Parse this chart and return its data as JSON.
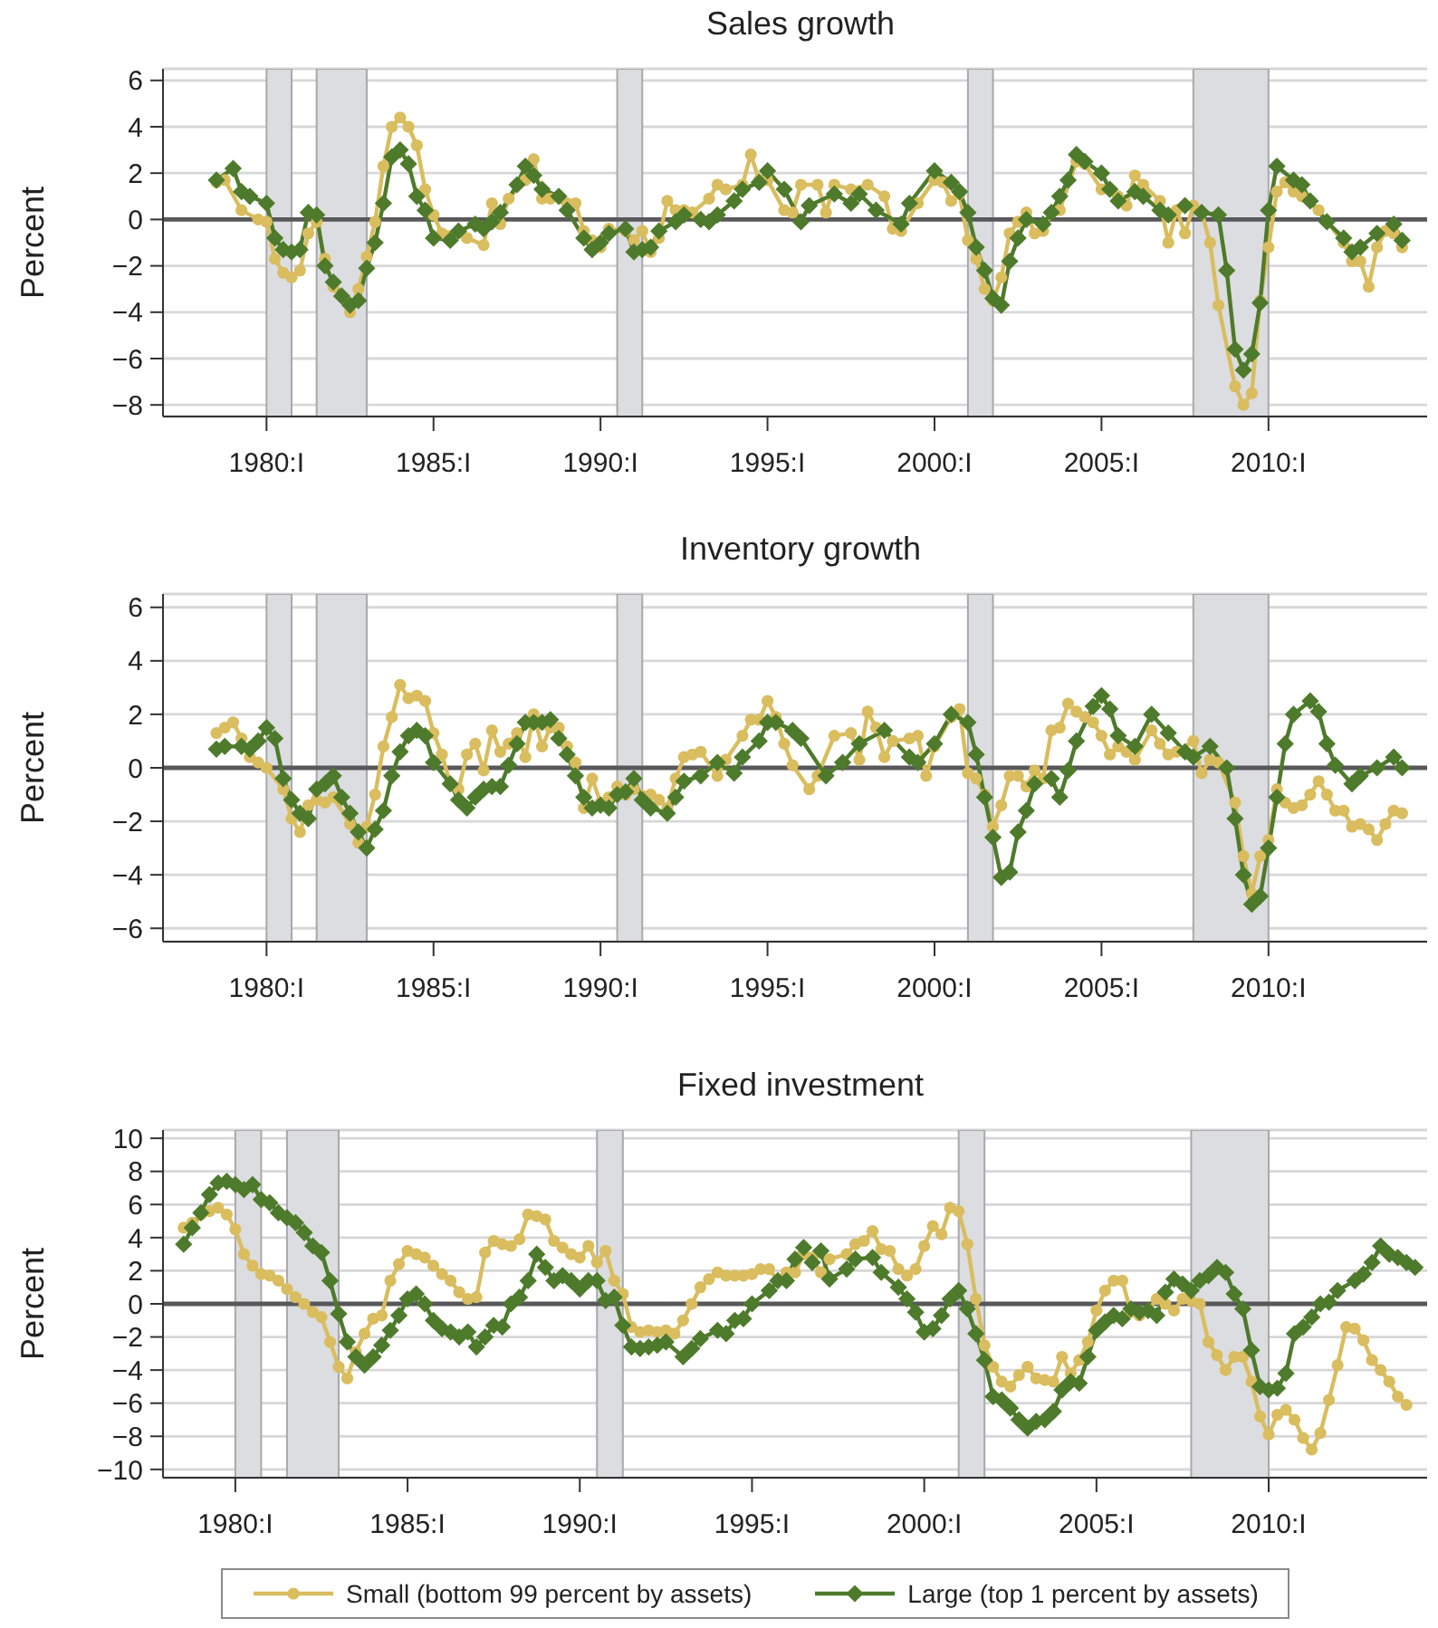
{
  "chart_data": [
    {
      "type": "line",
      "title": "Sales growth",
      "ylabel": "Percent",
      "xlim": [
        1976.9,
        2014.75
      ],
      "ylim": [
        -8.5,
        6.5
      ],
      "xticks": [
        {
          "value": 1980,
          "label": "1980:I"
        },
        {
          "value": 1985,
          "label": "1985:I"
        },
        {
          "value": 1990,
          "label": "1990:I"
        },
        {
          "value": 1995,
          "label": "1995:I"
        },
        {
          "value": 2000,
          "label": "2000:I"
        },
        {
          "value": 2005,
          "label": "2005:I"
        },
        {
          "value": 2010,
          "label": "2010:I"
        }
      ],
      "yticks": [
        {
          "value": -8,
          "label": "−8"
        },
        {
          "value": -6,
          "label": "−6"
        },
        {
          "value": -4,
          "label": "−4"
        },
        {
          "value": -2,
          "label": "−2"
        },
        0,
        2,
        4,
        6
      ],
      "grid": "y",
      "bands": [
        {
          "axis": "x",
          "from": 1980,
          "to": 1980.75,
          "color": "#dcdde0"
        },
        {
          "axis": "x",
          "from": 1981.5,
          "to": 1983,
          "color": "#dcdde0"
        },
        {
          "axis": "x",
          "from": 1990.5,
          "to": 1991.25,
          "color": "#dcdde0"
        },
        {
          "axis": "x",
          "from": 2001,
          "to": 2001.75,
          "color": "#dcdde0"
        },
        {
          "axis": "x",
          "from": 2007.75,
          "to": 2010,
          "color": "#dcdde0"
        }
      ],
      "ref_lines": [
        {
          "axis": "y",
          "value": 0,
          "color": "#58585a"
        }
      ],
      "series": [
        {
          "color": "#d9bd5e",
          "marker": "circle",
          "x": [
            1978.5,
            1978.75,
            1979.25,
            1979.75,
            1980,
            1980.25,
            1980.5,
            1980.75,
            1981,
            1981.25,
            1981.5,
            1981.75,
            1982,
            1982.5,
            1982.75,
            1983,
            1983.25,
            1983.5,
            1983.75,
            1984,
            1984.25,
            1984.5,
            1984.75,
            1985,
            1985.25,
            1985.75,
            1986,
            1986.5,
            1986.75,
            1987,
            1987.25,
            1987.75,
            1988,
            1988.25,
            1988.5,
            1989,
            1989.25,
            1989.5,
            1989.75,
            1990,
            1990.25,
            1990.75,
            1991,
            1991.25,
            1991.5,
            1991.75,
            1992,
            1992.25,
            1992.5,
            1992.75,
            1993.25,
            1993.5,
            1993.75,
            1994.25,
            1994.5,
            1994.75,
            1995,
            1995.5,
            1995.75,
            1996,
            1996.5,
            1996.75,
            1997,
            1997.5,
            1998,
            1998.5,
            1998.75,
            1999,
            1999.5,
            2000,
            2000.25,
            2000.5,
            2000.75,
            2001,
            2001.25,
            2001.5,
            2001.75,
            2002,
            2002.25,
            2002.5,
            2002.75,
            2003,
            2003.25,
            2003.5,
            2003.75,
            2004.25,
            2004.5,
            2005,
            2005.5,
            2005.75,
            2006,
            2006.25,
            2006.75,
            2007,
            2007.25,
            2007.5,
            2007.75,
            2008,
            2008.25,
            2008.5,
            2009,
            2009.25,
            2009.5,
            2009.75,
            2010,
            2010.25,
            2010.5,
            2010.75,
            2011,
            2011.5,
            2011.75,
            2012.25,
            2012.5,
            2012.75,
            2013,
            2013.25,
            2013.5,
            2013.75,
            2014
          ],
          "values": [
            1.6,
            1.7,
            0.4,
            0.0,
            -0.1,
            -1.7,
            -2.3,
            -2.5,
            -2.2,
            -0.6,
            -0.1,
            -1.7,
            -2.9,
            -4.0,
            -3.0,
            -1.6,
            -0.1,
            2.3,
            4.0,
            4.4,
            4.0,
            3.2,
            1.3,
            0.2,
            -0.6,
            -0.5,
            -0.8,
            -1.1,
            0.7,
            -0.2,
            0.9,
            1.7,
            2.6,
            0.9,
            0.9,
            0.7,
            0.7,
            -0.5,
            -0.9,
            -1.2,
            -0.4,
            -0.5,
            -0.9,
            -0.5,
            -1.4,
            -0.8,
            0.8,
            0.4,
            0.4,
            0.3,
            0.9,
            1.5,
            1.3,
            1.5,
            2.8,
            1.7,
            1.7,
            0.4,
            0.3,
            1.5,
            1.5,
            0.3,
            1.5,
            1.3,
            1.5,
            1.0,
            -0.4,
            -0.5,
            0.7,
            1.7,
            1.6,
            0.8,
            1.1,
            -0.9,
            -1.7,
            -3.0,
            -3.5,
            -2.5,
            -0.6,
            -0.1,
            0.3,
            -0.6,
            -0.5,
            0.3,
            0.4,
            2.5,
            2.4,
            1.3,
            1.0,
            0.6,
            1.9,
            1.5,
            0.8,
            -1.0,
            0.4,
            -0.6,
            0.6,
            0.3,
            -1.0,
            -3.7,
            -7.2,
            -8.0,
            -7.5,
            -3.5,
            -1.2,
            1.2,
            1.6,
            1.2,
            1.0,
            0.4,
            -0.1,
            -1.0,
            -1.8,
            -1.8,
            -2.9,
            -1.2,
            -0.5,
            -0.6,
            -1.2
          ]
        },
        {
          "color": "#4e7a2b",
          "marker": "diamond",
          "x": [
            1978.5,
            1979,
            1979.25,
            1979.5,
            1980,
            1980.25,
            1980.5,
            1980.75,
            1981,
            1981.25,
            1981.5,
            1981.75,
            1982,
            1982.25,
            1982.5,
            1982.75,
            1983,
            1983.25,
            1983.5,
            1983.75,
            1984,
            1984.25,
            1984.5,
            1984.75,
            1985,
            1985.5,
            1985.75,
            1986.25,
            1986.5,
            1986.75,
            1987,
            1987.5,
            1987.75,
            1988,
            1988.25,
            1988.75,
            1989,
            1989.5,
            1989.75,
            1990,
            1990.25,
            1990.75,
            1991,
            1991.25,
            1991.5,
            1991.75,
            1992.25,
            1992.5,
            1993,
            1993.25,
            1993.5,
            1994,
            1994.25,
            1994.75,
            1995,
            1995.5,
            1996,
            1996.25,
            1997,
            1997.5,
            1997.75,
            1998.25,
            1999,
            1999.25,
            2000,
            2000.5,
            2000.75,
            2001,
            2001.25,
            2001.5,
            2001.75,
            2002,
            2002.25,
            2002.5,
            2002.75,
            2003.25,
            2003.5,
            2003.75,
            2004,
            2004.25,
            2004.5,
            2005,
            2005.25,
            2005.5,
            2006,
            2006.25,
            2006.75,
            2007,
            2007.5,
            2008,
            2008.5,
            2008.75,
            2009,
            2009.25,
            2009.5,
            2009.75,
            2010,
            2010.25,
            2010.75,
            2011,
            2011.25,
            2011.75,
            2012.25,
            2012.5,
            2012.75,
            2013.25,
            2013.75,
            2014
          ],
          "values": [
            1.7,
            2.2,
            1.2,
            1.0,
            0.7,
            -0.8,
            -1.3,
            -1.4,
            -1.3,
            0.3,
            0.2,
            -2.0,
            -2.7,
            -3.3,
            -3.7,
            -3.5,
            -2.1,
            -1.0,
            0.7,
            2.7,
            3.0,
            2.4,
            1.0,
            0.4,
            -0.8,
            -0.9,
            -0.5,
            -0.2,
            -0.4,
            -0.1,
            0.3,
            1.5,
            2.3,
            1.9,
            1.3,
            1.0,
            0.4,
            -0.8,
            -1.3,
            -1.0,
            -0.6,
            -0.4,
            -1.4,
            -1.3,
            -1.2,
            -0.5,
            -0.1,
            0.2,
            0.0,
            -0.1,
            0.2,
            0.8,
            1.3,
            1.6,
            2.1,
            1.3,
            -0.1,
            0.6,
            1.1,
            0.7,
            1.1,
            0.4,
            -0.2,
            0.7,
            2.1,
            1.6,
            1.2,
            0.3,
            -1.2,
            -2.2,
            -3.4,
            -3.7,
            -1.8,
            -0.8,
            0.0,
            -0.2,
            0.3,
            1.0,
            1.7,
            2.8,
            2.5,
            2.0,
            1.3,
            0.8,
            1.2,
            1.0,
            0.4,
            0.2,
            0.6,
            0.3,
            0.2,
            -2.2,
            -5.6,
            -6.5,
            -5.8,
            -3.6,
            0.4,
            2.3,
            1.7,
            1.5,
            0.8,
            -0.1,
            -0.8,
            -1.4,
            -1.2,
            -0.6,
            -0.2,
            -0.9
          ]
        }
      ]
    },
    {
      "type": "line",
      "title": "Inventory growth",
      "ylabel": "Percent",
      "xlim": [
        1976.9,
        2014.75
      ],
      "ylim": [
        -6.5,
        6.5
      ],
      "xticks": [
        {
          "value": 1980,
          "label": "1980:I"
        },
        {
          "value": 1985,
          "label": "1985:I"
        },
        {
          "value": 1990,
          "label": "1990:I"
        },
        {
          "value": 1995,
          "label": "1995:I"
        },
        {
          "value": 2000,
          "label": "2000:I"
        },
        {
          "value": 2005,
          "label": "2005:I"
        },
        {
          "value": 2010,
          "label": "2010:I"
        }
      ],
      "yticks": [
        {
          "value": -6,
          "label": "−6"
        },
        {
          "value": -4,
          "label": "−4"
        },
        {
          "value": -2,
          "label": "−2"
        },
        0,
        2,
        4,
        6
      ],
      "grid": "y",
      "bands": [
        {
          "axis": "x",
          "from": 1980,
          "to": 1980.75,
          "color": "#dcdde0"
        },
        {
          "axis": "x",
          "from": 1981.5,
          "to": 1983,
          "color": "#dcdde0"
        },
        {
          "axis": "x",
          "from": 1990.5,
          "to": 1991.25,
          "color": "#dcdde0"
        },
        {
          "axis": "x",
          "from": 2001,
          "to": 2001.75,
          "color": "#dcdde0"
        },
        {
          "axis": "x",
          "from": 2007.75,
          "to": 2010,
          "color": "#dcdde0"
        }
      ],
      "ref_lines": [
        {
          "axis": "y",
          "value": 0,
          "color": "#58585a"
        }
      ],
      "series": [
        {
          "color": "#d9bd5e",
          "marker": "circle",
          "x": [
            1978.5,
            1978.75,
            1979,
            1979.25,
            1979.5,
            1979.75,
            1980,
            1980.5,
            1980.75,
            1981,
            1981.25,
            1981.5,
            1981.75,
            1982,
            1982.5,
            1982.75,
            1983,
            1983.25,
            1983.5,
            1983.75,
            1984,
            1984.25,
            1984.5,
            1984.75,
            1985,
            1985.25,
            1985.5,
            1985.75,
            1986,
            1986.25,
            1986.5,
            1986.75,
            1987,
            1987.25,
            1987.5,
            1987.75,
            1988,
            1988.25,
            1988.5,
            1988.75,
            1989,
            1989.25,
            1989.5,
            1989.75,
            1990,
            1990.25,
            1990.5,
            1990.75,
            1991,
            1991.5,
            1991.75,
            1992,
            1992.25,
            1992.5,
            1992.75,
            1993,
            1993.5,
            1993.75,
            1994.25,
            1994.5,
            1994.75,
            1995,
            1995.25,
            1995.5,
            1995.75,
            1996.25,
            1996.5,
            1997,
            1997.5,
            1997.75,
            1998,
            1998.25,
            1998.5,
            1998.75,
            1999.25,
            1999.5,
            1999.75,
            2000,
            2000.5,
            2000.75,
            2001,
            2001.25,
            2001.5,
            2001.75,
            2002,
            2002.25,
            2002.5,
            2002.75,
            2003,
            2003.25,
            2003.5,
            2003.75,
            2004,
            2004.25,
            2004.5,
            2004.75,
            2005,
            2005.25,
            2005.5,
            2005.75,
            2006,
            2006.5,
            2006.75,
            2007,
            2007.25,
            2007.75,
            2008,
            2008.25,
            2008.5,
            2009,
            2009.25,
            2009.5,
            2009.75,
            2010,
            2010.25,
            2010.5,
            2010.75,
            2011,
            2011.25,
            2011.5,
            2011.75,
            2012,
            2012.25,
            2012.5,
            2012.75,
            2013,
            2013.25,
            2013.5,
            2013.75,
            2014
          ],
          "values": [
            1.3,
            1.5,
            1.7,
            1.1,
            0.4,
            0.2,
            0.0,
            -0.8,
            -1.9,
            -2.4,
            -1.4,
            -1.2,
            -1.3,
            -1.1,
            -2.1,
            -2.8,
            -2.2,
            -1.0,
            0.8,
            1.9,
            3.1,
            2.6,
            2.7,
            2.5,
            1.3,
            0.5,
            -0.6,
            -0.8,
            0.5,
            0.9,
            -0.1,
            1.4,
            0.6,
            0.9,
            1.3,
            0.4,
            2.0,
            0.8,
            1.5,
            1.5,
            0.8,
            0.2,
            -1.5,
            -0.4,
            -1.3,
            -1.1,
            -0.7,
            -1.0,
            -0.8,
            -1.0,
            -1.2,
            -1.5,
            -0.4,
            0.4,
            0.5,
            0.6,
            -0.3,
            0.3,
            1.2,
            1.8,
            1.8,
            2.5,
            1.9,
            0.9,
            0.1,
            -0.8,
            -0.3,
            1.2,
            1.3,
            0.3,
            2.1,
            1.5,
            0.4,
            1.0,
            1.1,
            1.2,
            -0.3,
            0.8,
            1.9,
            2.2,
            -0.2,
            -0.4,
            -1.0,
            -2.2,
            -1.4,
            -0.3,
            -0.3,
            -0.7,
            -0.1,
            -0.4,
            1.4,
            1.5,
            2.4,
            2.1,
            1.9,
            1.7,
            1.2,
            0.5,
            0.8,
            0.6,
            0.3,
            1.4,
            0.9,
            0.5,
            0.6,
            1.0,
            -0.2,
            0.3,
            0.2,
            -1.3,
            -3.3,
            -4.7,
            -3.3,
            -2.7,
            -0.8,
            -1.3,
            -1.5,
            -1.4,
            -1.0,
            -0.5,
            -1.0,
            -1.6,
            -1.6,
            -2.2,
            -2.1,
            -2.3,
            -2.7,
            -2.1,
            -1.6,
            -1.7
          ]
        },
        {
          "color": "#4e7a2b",
          "marker": "diamond",
          "x": [
            1978.5,
            1978.75,
            1979.25,
            1979.5,
            1979.75,
            1980,
            1980.25,
            1980.5,
            1980.75,
            1981,
            1981.25,
            1981.5,
            1981.75,
            1982,
            1982.25,
            1982.5,
            1982.75,
            1983,
            1983.25,
            1983.5,
            1983.75,
            1984,
            1984.25,
            1984.5,
            1984.75,
            1985,
            1985.5,
            1985.75,
            1986,
            1986.25,
            1986.5,
            1986.75,
            1987,
            1987.25,
            1987.5,
            1987.75,
            1988,
            1988.25,
            1988.5,
            1988.75,
            1989,
            1989.25,
            1989.5,
            1989.75,
            1990,
            1990.25,
            1990.5,
            1990.75,
            1991,
            1991.25,
            1991.5,
            1992,
            1992.25,
            1992.5,
            1993,
            1993.5,
            1994,
            1994.25,
            1994.75,
            1995,
            1995.25,
            1995.75,
            1996,
            1996.75,
            1997.25,
            1997.75,
            1998.5,
            1999.25,
            1999.5,
            2000,
            2000.5,
            2001,
            2001.25,
            2001.5,
            2001.75,
            2002,
            2002.25,
            2002.5,
            2002.75,
            2003,
            2003.5,
            2003.75,
            2004,
            2004.25,
            2004.75,
            2005,
            2005.25,
            2005.5,
            2006,
            2006.5,
            2007,
            2007.5,
            2007.75,
            2008.25,
            2008.75,
            2009,
            2009.25,
            2009.5,
            2009.75,
            2010,
            2010.25,
            2010.5,
            2010.75,
            2011.25,
            2011.5,
            2011.75,
            2012,
            2012.5,
            2012.75,
            2013.25,
            2013.75,
            2014
          ],
          "values": [
            0.7,
            0.8,
            0.8,
            0.7,
            1.0,
            1.5,
            1.1,
            -0.4,
            -1.2,
            -1.7,
            -1.9,
            -0.8,
            -0.6,
            -0.3,
            -1.1,
            -1.7,
            -2.4,
            -3.0,
            -2.3,
            -1.6,
            -0.3,
            0.6,
            1.2,
            1.4,
            1.2,
            0.2,
            -0.6,
            -1.2,
            -1.5,
            -1.1,
            -0.8,
            -0.7,
            -0.7,
            0.1,
            0.9,
            1.7,
            1.7,
            1.7,
            1.8,
            1.1,
            0.5,
            -0.3,
            -1.1,
            -1.5,
            -1.4,
            -1.5,
            -1.0,
            -0.9,
            -0.4,
            -1.2,
            -1.5,
            -1.7,
            -1.1,
            -0.5,
            -0.3,
            0.2,
            -0.2,
            0.4,
            1.0,
            1.7,
            1.7,
            1.4,
            1.1,
            -0.3,
            0.2,
            0.9,
            1.4,
            0.4,
            0.2,
            0.9,
            2.0,
            1.7,
            0.5,
            -1.1,
            -2.6,
            -4.1,
            -3.9,
            -2.4,
            -1.6,
            -0.6,
            -0.4,
            -1.1,
            -0.1,
            1.0,
            2.3,
            2.7,
            2.2,
            1.2,
            0.8,
            2.0,
            1.3,
            0.6,
            0.4,
            0.8,
            0.0,
            -1.9,
            -4.0,
            -5.1,
            -4.8,
            -3.0,
            -1.1,
            0.9,
            2.0,
            2.5,
            2.1,
            0.9,
            0.1,
            -0.6,
            -0.3,
            0.0,
            0.4,
            0.0
          ]
        }
      ]
    },
    {
      "type": "line",
      "title": "Fixed investment",
      "ylabel": "Percent",
      "xlim": [
        1977.9,
        2014.6
      ],
      "ylim": [
        -10.5,
        10.5
      ],
      "xticks": [
        {
          "value": 1980,
          "label": "1980:I"
        },
        {
          "value": 1985,
          "label": "1985:I"
        },
        {
          "value": 1990,
          "label": "1990:I"
        },
        {
          "value": 1995,
          "label": "1995:I"
        },
        {
          "value": 2000,
          "label": "2000:I"
        },
        {
          "value": 2005,
          "label": "2005:I"
        },
        {
          "value": 2010,
          "label": "2010:I"
        }
      ],
      "yticks": [
        {
          "value": -10,
          "label": "−10"
        },
        {
          "value": -8,
          "label": "−8"
        },
        {
          "value": -6,
          "label": "−6"
        },
        {
          "value": -4,
          "label": "−4"
        },
        {
          "value": -2,
          "label": "−2"
        },
        0,
        2,
        4,
        6,
        8,
        10
      ],
      "grid": "y",
      "legend": "bottom",
      "bands": [
        {
          "axis": "x",
          "from": 1980,
          "to": 1980.75,
          "color": "#dcdde0"
        },
        {
          "axis": "x",
          "from": 1981.5,
          "to": 1983,
          "color": "#dcdde0"
        },
        {
          "axis": "x",
          "from": 1990.5,
          "to": 1991.25,
          "color": "#dcdde0"
        },
        {
          "axis": "x",
          "from": 2001,
          "to": 2001.75,
          "color": "#dcdde0"
        },
        {
          "axis": "x",
          "from": 2007.75,
          "to": 2010,
          "color": "#dcdde0"
        }
      ],
      "ref_lines": [
        {
          "axis": "y",
          "value": 0,
          "color": "#58585a"
        }
      ],
      "series": [
        {
          "name": "Small (bottom 99 percent by assets)",
          "color": "#d9bd5e",
          "marker": "circle",
          "x": [
            1978.5,
            1978.75,
            1979,
            1979.25,
            1979.5,
            1979.75,
            1980,
            1980.25,
            1980.5,
            1980.75,
            1981,
            1981.25,
            1981.5,
            1981.75,
            1982,
            1982.25,
            1982.5,
            1982.75,
            1983,
            1983.25,
            1983.5,
            1983.75,
            1984,
            1984.25,
            1984.5,
            1984.75,
            1985,
            1985.25,
            1985.5,
            1985.75,
            1986,
            1986.25,
            1986.5,
            1986.75,
            1987,
            1987.25,
            1987.5,
            1987.75,
            1988,
            1988.25,
            1988.5,
            1988.75,
            1989,
            1989.25,
            1989.5,
            1989.75,
            1990,
            1990.25,
            1990.5,
            1990.75,
            1991,
            1991.25,
            1991.5,
            1991.75,
            1992,
            1992.25,
            1992.5,
            1992.75,
            1993,
            1993.25,
            1993.5,
            1993.75,
            1994,
            1994.25,
            1994.5,
            1994.75,
            1995,
            1995.25,
            1995.5,
            1995.75,
            1996,
            1996.25,
            1996.5,
            1996.75,
            1997,
            1997.25,
            1997.75,
            1998,
            1998.25,
            1998.5,
            1998.75,
            1999,
            1999.25,
            1999.5,
            1999.75,
            2000,
            2000.25,
            2000.5,
            2000.75,
            2001,
            2001.25,
            2001.5,
            2001.75,
            2002,
            2002.25,
            2002.5,
            2002.75,
            2003,
            2003.25,
            2003.5,
            2003.75,
            2004,
            2004.25,
            2004.5,
            2004.75,
            2005,
            2005.25,
            2005.5,
            2005.75,
            2006,
            2006.25,
            2006.5,
            2006.75,
            2007,
            2007.25,
            2007.5,
            2007.75,
            2008,
            2008.25,
            2008.5,
            2008.75,
            2009,
            2009.25,
            2009.5,
            2009.75,
            2010,
            2010.25,
            2010.5,
            2010.75,
            2011,
            2011.25,
            2011.5,
            2011.75,
            2012,
            2012.25,
            2012.5,
            2012.75,
            2013,
            2013.25,
            2013.5,
            2013.75,
            2014
          ],
          "values": [
            4.6,
            4.9,
            5.4,
            5.6,
            5.8,
            5.4,
            4.5,
            3.0,
            2.3,
            1.8,
            1.7,
            1.4,
            0.9,
            0.4,
            0.0,
            -0.5,
            -0.8,
            -2.3,
            -3.8,
            -4.5,
            -2.9,
            -1.8,
            -0.9,
            -0.7,
            1.4,
            2.4,
            3.2,
            3.0,
            2.8,
            2.3,
            1.8,
            1.4,
            0.7,
            0.3,
            0.4,
            3.1,
            3.8,
            3.6,
            3.5,
            3.9,
            5.4,
            5.3,
            5.1,
            3.8,
            3.4,
            3.0,
            2.8,
            3.5,
            2.5,
            3.2,
            1.4,
            0.6,
            -1.4,
            -1.7,
            -1.6,
            -1.7,
            -1.6,
            -1.8,
            -1.0,
            0.0,
            1.0,
            1.5,
            1.9,
            1.7,
            1.7,
            1.7,
            1.8,
            2.1,
            2.1,
            1.4,
            1.9,
            1.9,
            3.0,
            2.8,
            1.9,
            2.7,
            3.0,
            3.6,
            3.8,
            4.4,
            3.3,
            3.2,
            2.1,
            1.7,
            2.1,
            3.5,
            4.7,
            4.2,
            5.8,
            5.6,
            3.6,
            0.3,
            -2.5,
            -3.8,
            -4.7,
            -5.0,
            -4.3,
            -3.8,
            -4.5,
            -4.6,
            -4.7,
            -3.2,
            -4.2,
            -3.4,
            -2.3,
            -0.4,
            0.8,
            1.4,
            1.4,
            -0.5,
            -0.7,
            -0.4,
            0.3,
            0.0,
            -0.4,
            0.3,
            0.2,
            0.0,
            -2.3,
            -3.1,
            -4.0,
            -3.2,
            -3.2,
            -4.7,
            -6.8,
            -7.9,
            -6.7,
            -6.4,
            -7.0,
            -8.1,
            -8.8,
            -7.8,
            -5.8,
            -3.7,
            -1.4,
            -1.5,
            -2.2,
            -3.4,
            -4.0,
            -4.7,
            -5.6,
            -6.1
          ]
        },
        {
          "name": "Large (top 1 percent by assets)",
          "color": "#4e7a2b",
          "marker": "diamond",
          "x": [
            1978.5,
            1978.75,
            1979,
            1979.25,
            1979.5,
            1979.75,
            1980,
            1980.25,
            1980.5,
            1980.75,
            1981,
            1981.25,
            1981.5,
            1981.75,
            1982,
            1982.25,
            1982.5,
            1982.75,
            1983,
            1983.25,
            1983.5,
            1983.75,
            1984,
            1984.25,
            1984.5,
            1984.75,
            1985,
            1985.25,
            1985.5,
            1985.75,
            1986,
            1986.25,
            1986.5,
            1986.75,
            1987,
            1987.25,
            1987.5,
            1987.75,
            1988,
            1988.25,
            1988.5,
            1988.75,
            1989,
            1989.25,
            1989.5,
            1989.75,
            1990,
            1990.25,
            1990.5,
            1990.75,
            1991,
            1991.25,
            1991.5,
            1991.75,
            1992,
            1992.25,
            1992.5,
            1993,
            1993.25,
            1993.5,
            1994,
            1994.25,
            1994.5,
            1994.75,
            1995,
            1995.5,
            1995.75,
            1996,
            1996.25,
            1996.5,
            1996.75,
            1997,
            1997.25,
            1997.75,
            1998,
            1998.5,
            1998.75,
            1999.25,
            1999.5,
            1999.75,
            2000,
            2000.25,
            2000.5,
            2000.75,
            2001,
            2001.25,
            2001.5,
            2001.75,
            2002,
            2002.25,
            2002.5,
            2002.75,
            2003,
            2003.25,
            2003.5,
            2003.75,
            2004,
            2004.25,
            2004.5,
            2004.75,
            2005,
            2005.25,
            2005.5,
            2005.75,
            2006,
            2006.25,
            2006.5,
            2006.75,
            2007,
            2007.25,
            2007.5,
            2007.75,
            2008,
            2008.25,
            2008.5,
            2008.75,
            2009,
            2009.25,
            2009.5,
            2009.75,
            2010,
            2010.25,
            2010.5,
            2010.75,
            2011,
            2011.25,
            2011.5,
            2011.75,
            2012,
            2012.5,
            2012.75,
            2013,
            2013.25,
            2013.5,
            2013.75,
            2014,
            2014.25
          ],
          "values": [
            3.6,
            4.6,
            5.5,
            6.6,
            7.3,
            7.4,
            7.2,
            6.9,
            7.2,
            6.3,
            6.1,
            5.5,
            5.2,
            4.9,
            4.3,
            3.5,
            3.1,
            1.4,
            -0.6,
            -2.3,
            -3.2,
            -3.7,
            -3.2,
            -2.5,
            -1.6,
            -0.7,
            0.3,
            0.6,
            0.0,
            -1.0,
            -1.5,
            -1.7,
            -2.0,
            -1.7,
            -2.6,
            -2.0,
            -1.3,
            -1.4,
            0.0,
            0.4,
            1.4,
            3.0,
            2.2,
            1.4,
            1.7,
            1.4,
            0.9,
            1.4,
            1.4,
            0.2,
            0.4,
            -1.3,
            -2.6,
            -2.7,
            -2.6,
            -2.5,
            -2.3,
            -3.2,
            -2.7,
            -2.1,
            -1.6,
            -1.8,
            -1.0,
            -0.9,
            0.0,
            0.8,
            1.4,
            1.4,
            2.7,
            3.4,
            2.5,
            3.2,
            1.5,
            2.1,
            2.7,
            2.8,
            1.9,
            1.0,
            0.3,
            -0.5,
            -1.7,
            -1.5,
            -0.7,
            0.3,
            0.8,
            -0.3,
            -1.8,
            -3.4,
            -5.6,
            -5.8,
            -6.3,
            -7.0,
            -7.5,
            -7.1,
            -7.0,
            -6.5,
            -5.2,
            -4.7,
            -4.8,
            -3.2,
            -1.6,
            -1.1,
            -0.7,
            -0.9,
            -0.3,
            -0.5,
            -0.4,
            -0.7,
            0.7,
            1.5,
            1.2,
            0.8,
            1.4,
            1.7,
            2.2,
            1.9,
            0.6,
            -0.3,
            -2.8,
            -5.0,
            -5.2,
            -5.1,
            -4.2,
            -1.8,
            -1.4,
            -0.8,
            0.0,
            0.1,
            0.8,
            1.4,
            1.8,
            2.5,
            3.5,
            3.0,
            2.8,
            2.5,
            2.2
          ]
        }
      ]
    }
  ]
}
